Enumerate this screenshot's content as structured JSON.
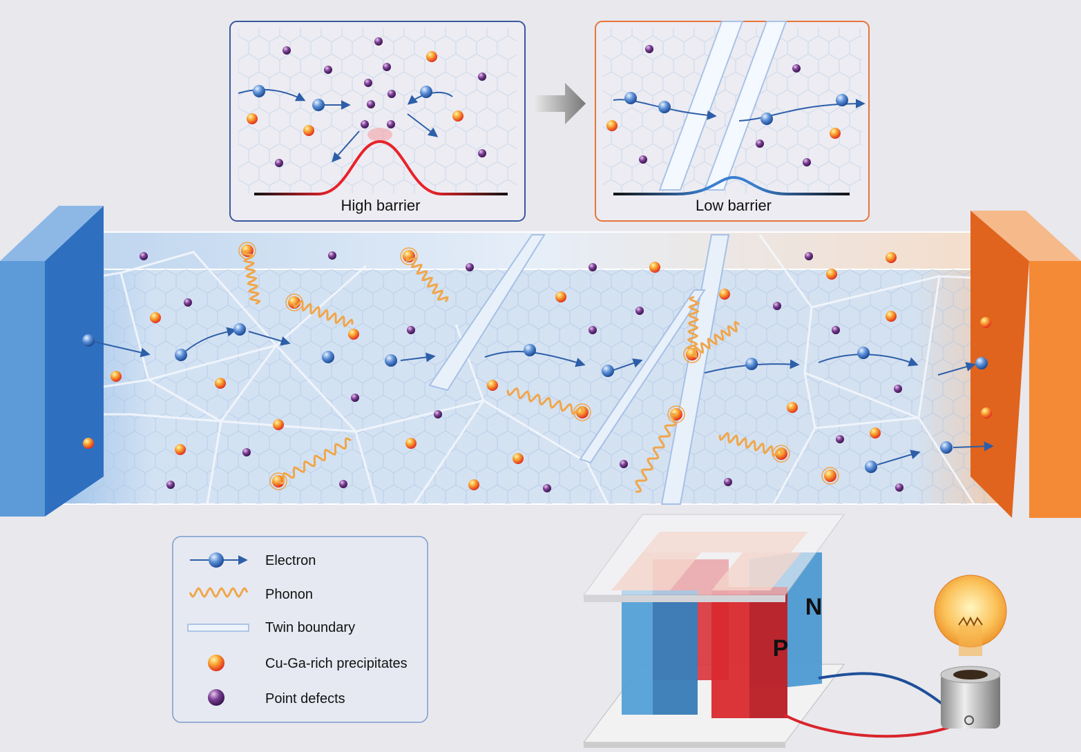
{
  "panels": [
    {
      "label": "High barrier"
    },
    {
      "label": "Low barrier"
    }
  ],
  "legend": {
    "items": [
      "Electron",
      "Phonon",
      "Twin boundary",
      "Cu-Ga-rich precipitates",
      "Point defects"
    ]
  },
  "device": {
    "labels": [
      "P",
      "N"
    ]
  }
}
